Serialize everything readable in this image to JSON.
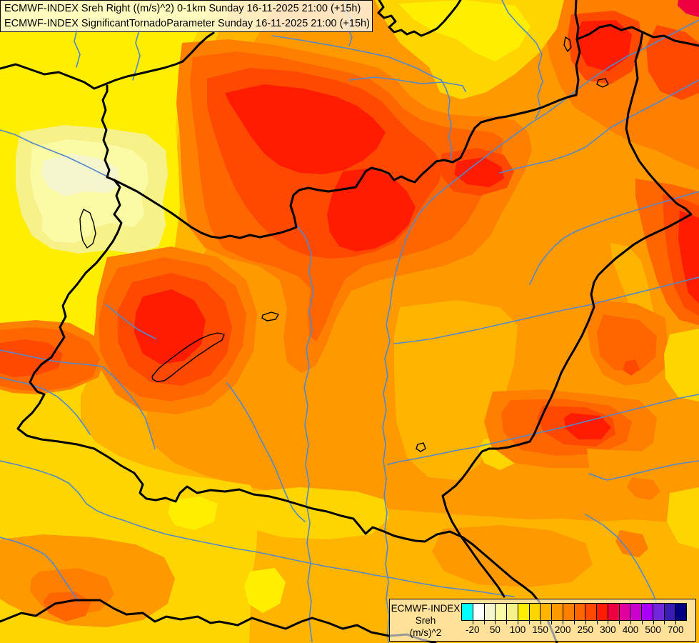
{
  "title_box": {
    "line1": "ECMWF-INDEX Sreh Right ((m/s)^2) 0-1km Sunday 16-11-2025 21:00 (+15h)",
    "line2": "ECMWF-INDEX SignificantTornadoParameter Sunday 16-11-2025 21:00 (+15h)",
    "bg": "rgba(255,255,255,0.75)"
  },
  "legend": {
    "title": "ECMWF-INDEX",
    "param": "Sreh",
    "unit": "(m/s)^2",
    "bg": "rgba(255,255,255,0.60)",
    "palette": [
      "#00FFFF",
      "#FFFFFF",
      "#F6F6CE",
      "#FBFBA6",
      "#F7F189",
      "#FFEE00",
      "#FFD500",
      "#FFB400",
      "#FF9900",
      "#FF8000",
      "#FF6600",
      "#FF4900",
      "#FF1C00",
      "#EE0040",
      "#E0009D",
      "#CC00CC",
      "#A800F8",
      "#7128D8",
      "#3A1DB5",
      "#000080"
    ],
    "tick_labels": [
      "-20",
      "",
      "50",
      "",
      "100",
      "",
      "150",
      "",
      "200",
      "",
      "250",
      "",
      "300",
      "",
      "400",
      "",
      "500",
      "",
      "700"
    ]
  },
  "map": {
    "border_color": "#000000",
    "river_color": "#5588C8",
    "lake_color": "#000000"
  }
}
